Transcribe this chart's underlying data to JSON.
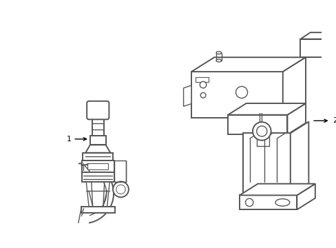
{
  "background_color": "#ffffff",
  "line_color": "#555555",
  "line_color_dark": "#333333",
  "line_width": 1.0,
  "label1": "1",
  "label2": "2",
  "fig_width": 4.89,
  "fig_height": 3.6,
  "dpi": 100
}
